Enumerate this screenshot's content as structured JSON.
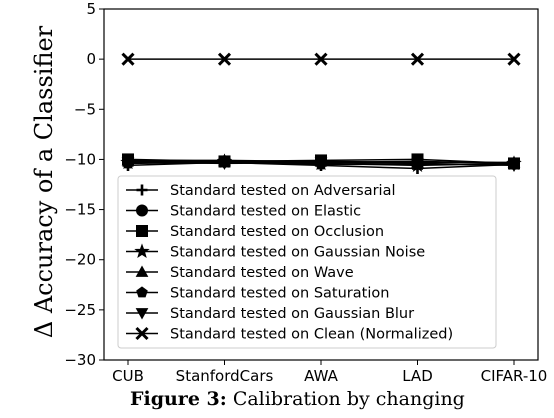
{
  "chart_data": {
    "type": "line",
    "categories": [
      "CUB",
      "StanfordCars",
      "AWA",
      "LAD",
      "CIFAR-10"
    ],
    "ylabel": "Δ Accuracy of a Classifier",
    "xlabel": "",
    "ylim": [
      -30,
      5
    ],
    "yticks": [
      5,
      0,
      -5,
      -10,
      -15,
      -20,
      -25,
      -30
    ],
    "grid": false,
    "legend_position": "lower-center",
    "series": [
      {
        "name": "Standard tested on Adversarial",
        "marker": "plus",
        "values": [
          -10.6,
          -10.3,
          -10.6,
          -10.9,
          -10.5
        ]
      },
      {
        "name": "Standard tested on Elastic",
        "marker": "circle",
        "values": [
          -10.2,
          -10.2,
          -10.3,
          -10.2,
          -10.4
        ]
      },
      {
        "name": "Standard tested on Occlusion",
        "marker": "square",
        "values": [
          -10.0,
          -10.2,
          -10.1,
          -10.0,
          -10.4
        ]
      },
      {
        "name": "Standard tested on Gaussian Noise",
        "marker": "star",
        "values": [
          -10.3,
          -10.2,
          -10.4,
          -10.6,
          -10.4
        ]
      },
      {
        "name": "Standard tested on Wave",
        "marker": "triangle-up",
        "values": [
          -10.1,
          -10.1,
          -10.2,
          -10.3,
          -10.3
        ]
      },
      {
        "name": "Standard tested on Saturation",
        "marker": "pentagon",
        "values": [
          -10.4,
          -10.3,
          -10.5,
          -10.5,
          -10.5
        ]
      },
      {
        "name": "Standard tested on Gaussian Blur",
        "marker": "triangle-down",
        "values": [
          -10.3,
          -10.4,
          -10.3,
          -10.4,
          -10.6
        ]
      },
      {
        "name": "Standard tested on Clean (Normalized)",
        "marker": "x",
        "values": [
          0,
          0,
          0,
          0,
          0
        ]
      }
    ]
  },
  "caption": {
    "prefix": "Figure 3:",
    "text": "Calibration by changing",
    "left_fragment": "Figure"
  }
}
